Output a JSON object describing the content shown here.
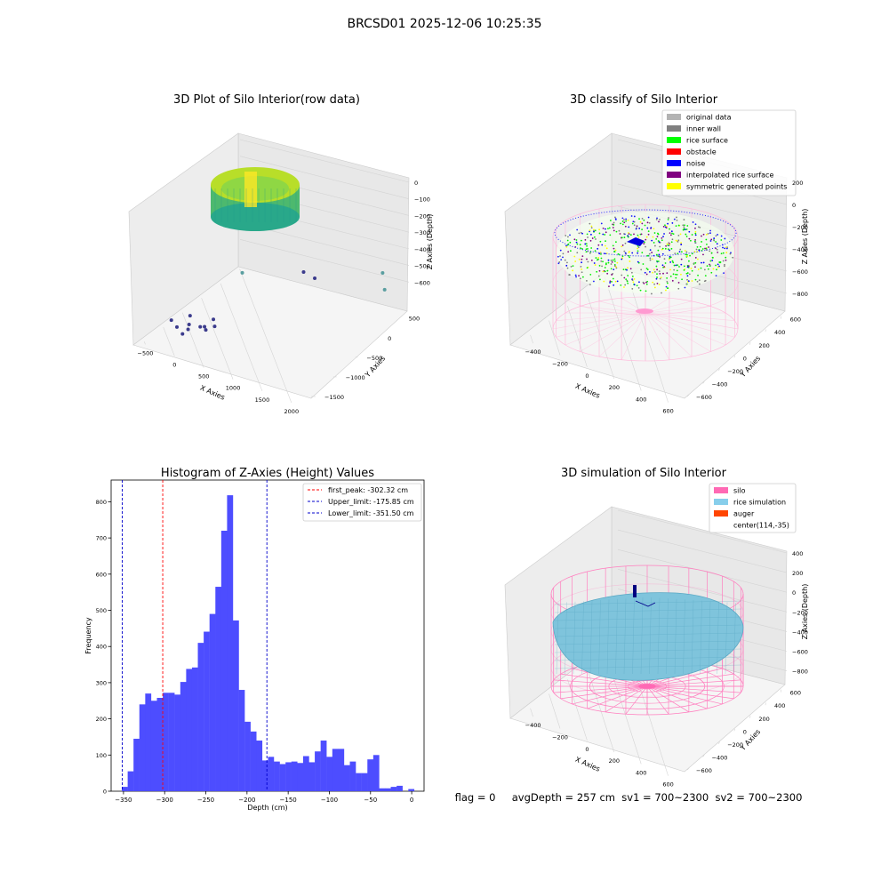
{
  "suptitle": "BRCSD01 2025-12-06 10:25:35",
  "status_line": "flag = 0     avgDepth = 257 cm  sv1 = 700~2300  sv2 = 700~2300",
  "chart_data": [
    {
      "type": "scatter",
      "projection": "3d",
      "title": "3D Plot of Silo Interior(row data)",
      "xlabel": "X Axies",
      "ylabel": "Y Axies",
      "zlabel": "Z Axies (Depth)",
      "xticks": [
        "−500",
        "0",
        "500",
        "1000",
        "1500",
        "2000"
      ],
      "yticks": [
        "−1500",
        "−1000",
        "−500",
        "0",
        "500"
      ],
      "zticks": [
        "0",
        "−100",
        "−200",
        "−300",
        "−400",
        "−500",
        "−600"
      ],
      "xlim": [
        -600,
        2100
      ],
      "ylim": [
        -1700,
        600
      ],
      "zlim": [
        -650,
        50
      ],
      "colormap": "viridis",
      "outlier_points_xyz": [
        [
          -300,
          200,
          -560
        ],
        [
          -250,
          150,
          -600
        ],
        [
          -200,
          100,
          -640
        ],
        [
          -150,
          50,
          -620
        ],
        [
          -100,
          100,
          -580
        ],
        [
          0,
          0,
          -600
        ],
        [
          50,
          -50,
          -620
        ],
        [
          100,
          50,
          -580
        ],
        [
          -50,
          150,
          -520
        ],
        [
          150,
          -100,
          -600
        ],
        [
          200,
          0,
          -540
        ],
        [
          600,
          -1400,
          -500
        ],
        [
          700,
          -1500,
          -540
        ],
        [
          1800,
          -1400,
          -380
        ],
        [
          1900,
          -1300,
          -440
        ],
        [
          500,
          -200,
          -300
        ]
      ]
    },
    {
      "type": "scatter",
      "projection": "3d",
      "title": "3D classify of Silo Interior",
      "xlabel": "X Axies",
      "ylabel": "Y Axies",
      "zlabel": "Z Axies (Depth)",
      "xticks": [
        "−400",
        "−200",
        "0",
        "200",
        "400",
        "600"
      ],
      "yticks": [
        "−600",
        "−400",
        "−200",
        "0",
        "200",
        "400",
        "600"
      ],
      "zticks": [
        "200",
        "0",
        "−200",
        "−400",
        "−600",
        "−800"
      ],
      "legend_location": "top-right",
      "legend": [
        {
          "label": "original data",
          "color": "#b3b3b3"
        },
        {
          "label": "inner wall",
          "color": "#808080"
        },
        {
          "label": "rice surface",
          "color": "#00ff00"
        },
        {
          "label": "obstacle",
          "color": "#ff0000"
        },
        {
          "label": "noise",
          "color": "#0000ff"
        },
        {
          "label": "interpolated rice surface",
          "color": "#800080"
        },
        {
          "label": "symmetric generated points",
          "color": "#ffff00"
        }
      ]
    },
    {
      "type": "bar",
      "title": "Histogram of Z-Axies (Height) Values",
      "xlabel": "Depth (cm)",
      "ylabel": "Frequency",
      "xlim": [
        -365,
        15
      ],
      "ylim": [
        0,
        860
      ],
      "xticks": [
        -350,
        -300,
        -250,
        -200,
        -150,
        -100,
        -50,
        0
      ],
      "yticks": [
        0,
        100,
        200,
        300,
        400,
        500,
        600,
        700,
        800
      ],
      "bar_color": "#4d4dff",
      "bins": {
        "start": -352,
        "width": 7.1,
        "counts": [
          12,
          55,
          145,
          240,
          270,
          250,
          258,
          272,
          272,
          267,
          302,
          338,
          342,
          410,
          441,
          490,
          565,
          720,
          818,
          472,
          280,
          192,
          165,
          140,
          85,
          95,
          82,
          75,
          80,
          82,
          78,
          97,
          80,
          110,
          140,
          95,
          117,
          117,
          72,
          82,
          50,
          50,
          88,
          100,
          8,
          8,
          12,
          15,
          0,
          6
        ]
      },
      "vlines": [
        {
          "label": "first_peak: -302.32 cm",
          "x": -302.32,
          "color": "#ff0000"
        },
        {
          "label": "Upper_limit: -175.85 cm",
          "x": -175.85,
          "color": "#0000cc"
        },
        {
          "label": "Lower_limit: -351.50 cm",
          "x": -351.5,
          "color": "#0000cc"
        }
      ],
      "legend_location": "top-right"
    },
    {
      "type": "surface",
      "projection": "3d",
      "title": "3D simulation of Silo Interior",
      "xlabel": "X Axies",
      "ylabel": "Y Axies",
      "zlabel": "Z Axies (Depth)",
      "xticks": [
        "−400",
        "−200",
        "0",
        "200",
        "400",
        "600"
      ],
      "yticks": [
        "−600",
        "−400",
        "−200",
        "0",
        "200",
        "400",
        "600"
      ],
      "zticks": [
        "400",
        "200",
        "0",
        "−200",
        "−400",
        "−600",
        "−800"
      ],
      "legend_location": "top-right",
      "legend": [
        {
          "label": "silo",
          "color": "#ff69b4"
        },
        {
          "label": "rice simulation",
          "color": "#87ceeb"
        },
        {
          "label": "auger",
          "color": "#ff4500"
        },
        {
          "label": "center(114,-35)",
          "color": ""
        }
      ]
    }
  ]
}
